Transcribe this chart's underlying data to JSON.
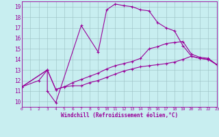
{
  "title": "",
  "xlabel": "Windchill (Refroidissement éolien,°C)",
  "bg_color": "#c8eef0",
  "line_color": "#990099",
  "xlim": [
    0,
    23
  ],
  "ylim": [
    9.5,
    19.5
  ],
  "xticks": [
    0,
    1,
    2,
    3,
    4,
    5,
    6,
    7,
    8,
    9,
    10,
    11,
    12,
    13,
    14,
    15,
    16,
    17,
    18,
    19,
    20,
    21,
    22,
    23
  ],
  "yticks": [
    10,
    11,
    12,
    13,
    14,
    15,
    16,
    17,
    18,
    19
  ],
  "line1_x": [
    0,
    2,
    3,
    3,
    4,
    7,
    9,
    10,
    11,
    12,
    13,
    14,
    15,
    16,
    17,
    18,
    19,
    20,
    21,
    22,
    23
  ],
  "line1_y": [
    11.4,
    12.0,
    13.0,
    11.0,
    9.9,
    17.2,
    14.7,
    18.7,
    19.25,
    19.1,
    19.0,
    18.7,
    18.6,
    17.5,
    17.0,
    16.7,
    15.3,
    14.3,
    14.1,
    14.0,
    13.5
  ],
  "line2_x": [
    0,
    3,
    4,
    5,
    6,
    7,
    8,
    9,
    10,
    11,
    12,
    13,
    14,
    15,
    16,
    17,
    18,
    19,
    20,
    21,
    22,
    23
  ],
  "line2_y": [
    11.4,
    13.0,
    11.15,
    11.4,
    11.5,
    11.5,
    11.8,
    12.0,
    12.3,
    12.6,
    12.9,
    13.1,
    13.3,
    13.4,
    13.5,
    13.6,
    13.75,
    14.0,
    14.3,
    14.1,
    14.0,
    13.5
  ],
  "line3_x": [
    0,
    3,
    4,
    5,
    6,
    7,
    8,
    9,
    10,
    11,
    12,
    13,
    14,
    15,
    16,
    17,
    18,
    19,
    20,
    21,
    22,
    23
  ],
  "line3_y": [
    11.4,
    13.0,
    11.15,
    11.4,
    11.8,
    12.1,
    12.4,
    12.7,
    13.1,
    13.4,
    13.6,
    13.8,
    14.1,
    15.0,
    15.2,
    15.5,
    15.6,
    15.7,
    14.5,
    14.2,
    14.1,
    13.5
  ]
}
